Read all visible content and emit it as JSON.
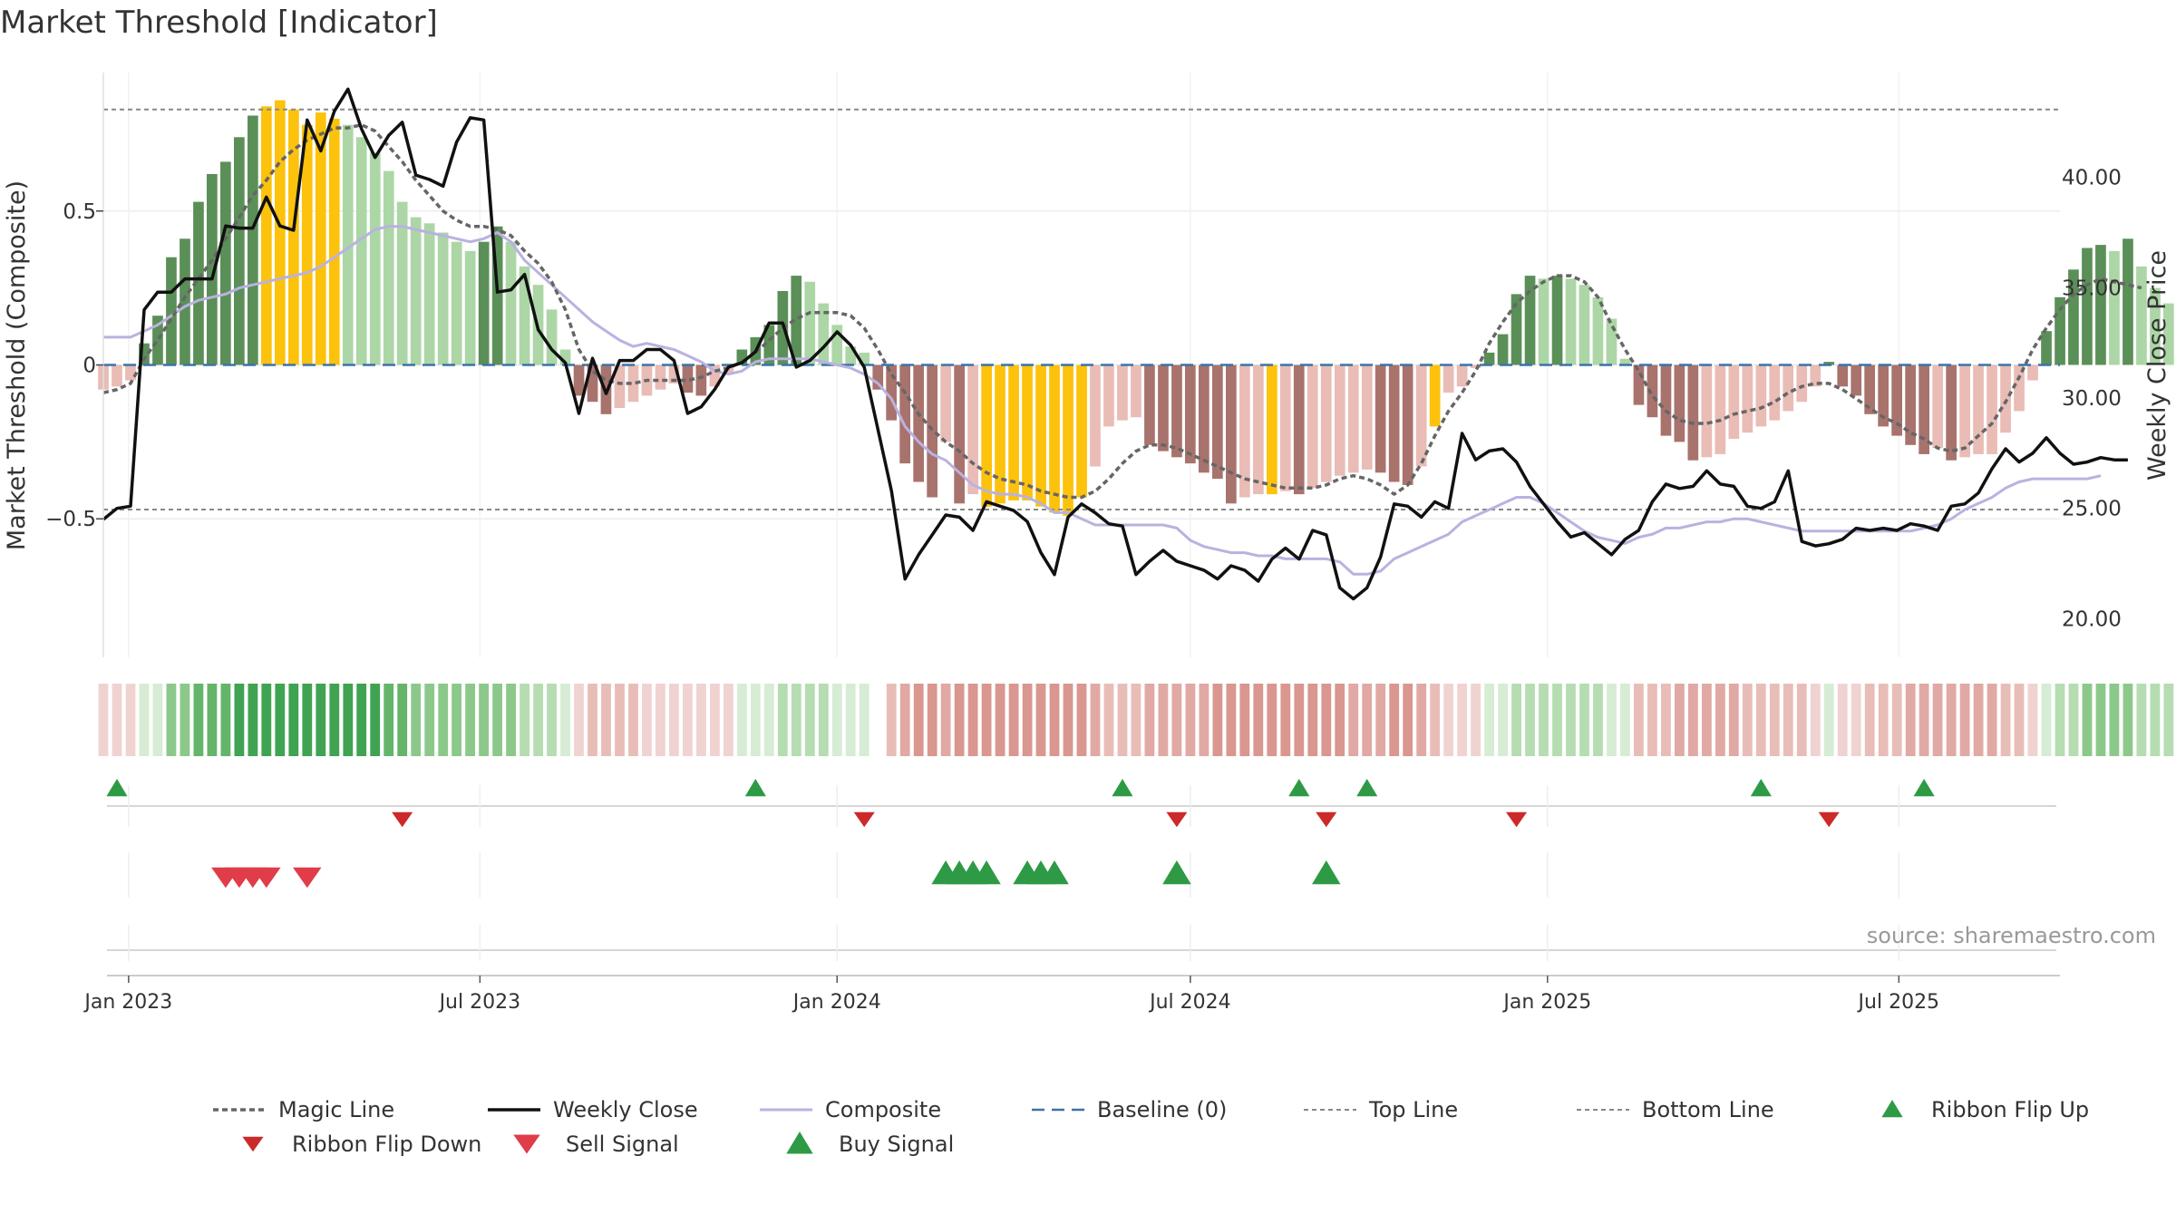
{
  "chart_data": {
    "type": "bar",
    "title": "Market Threshold [Indicator]",
    "ylabel_left": "Market Threshold (Composite)",
    "ylabel_right": "Weekly Close Price",
    "source": "source: sharemaestro.com",
    "ylim_left": [
      -0.95,
      0.95
    ],
    "yticks_left": [
      {
        "v": 0.5,
        "label": "0.5"
      },
      {
        "v": 0,
        "label": "0"
      },
      {
        "v": -0.5,
        "label": "−0.5"
      }
    ],
    "ylim_right": [
      18.25,
      44.75
    ],
    "yticks_right": [
      {
        "v": 40,
        "label": "40.00"
      },
      {
        "v": 35,
        "label": "35.00"
      },
      {
        "v": 30,
        "label": "30.00"
      },
      {
        "v": 25,
        "label": "25.00"
      },
      {
        "v": 20,
        "label": "20.00"
      }
    ],
    "x_axis_type": "weekly dates",
    "x_range": [
      "2022-12-19",
      "2025-09-22"
    ],
    "x_ticks": [
      {
        "date": "2023-01-01",
        "label": "Jan 2023"
      },
      {
        "date": "2023-07-01",
        "label": "Jul 2023"
      },
      {
        "date": "2024-01-01",
        "label": "Jan 2024"
      },
      {
        "date": "2024-07-01",
        "label": "Jul 2024"
      },
      {
        "date": "2025-01-01",
        "label": "Jan 2025"
      },
      {
        "date": "2025-07-01",
        "label": "Jul 2025"
      }
    ],
    "top_line": 0.83,
    "bottom_line": -0.47,
    "baseline": 0,
    "colors": {
      "dark_green": "#5b8f58",
      "light_green": "#acd6a6",
      "dark_red": "#a8736d",
      "light_red": "#e9bcb6",
      "gold": "#fcc20c",
      "magic": "#666666",
      "close": "#111111",
      "composite": "#b9b2e0",
      "baseline": "#3b73a8",
      "ref_line": "#888888",
      "flip_up": "#2e9a45",
      "flip_down": "#cc2a2a",
      "sell": "#e03c4a",
      "buy": "#2e9a45"
    },
    "ribbon_palette": {
      "up": [
        "#d6ecd4",
        "#b6dcb2",
        "#8dc88b",
        "#64b56a",
        "#3fa352"
      ],
      "down": [
        "#f0d3d0",
        "#e9bdb7",
        "#e1a9a4",
        "#d99790"
      ]
    },
    "series": [
      {
        "name": "Histogram",
        "start": "2022-12-19",
        "freq": "weekly",
        "values": [
          -0.08,
          -0.07,
          -0.05,
          0.07,
          0.16,
          0.35,
          0.41,
          0.53,
          0.62,
          0.66,
          0.74,
          0.81,
          0.84,
          0.86,
          0.83,
          0.78,
          0.82,
          0.8,
          0.78,
          0.74,
          0.69,
          0.63,
          0.53,
          0.48,
          0.46,
          0.43,
          0.4,
          0.37,
          0.4,
          0.45,
          0.4,
          0.32,
          0.26,
          0.18,
          0.05,
          -0.1,
          -0.12,
          -0.16,
          -0.14,
          -0.12,
          -0.1,
          -0.08,
          -0.06,
          -0.09,
          -0.1,
          -0.07,
          -0.03,
          0.05,
          0.09,
          0.13,
          0.24,
          0.29,
          0.27,
          0.2,
          0.13,
          0.06,
          0.04,
          -0.08,
          -0.18,
          -0.32,
          -0.38,
          -0.43,
          -0.25,
          -0.45,
          -0.42,
          -0.46,
          -0.45,
          -0.44,
          -0.44,
          -0.46,
          -0.48,
          -0.49,
          -0.43,
          -0.33,
          -0.2,
          -0.18,
          -0.17,
          -0.26,
          -0.28,
          -0.3,
          -0.32,
          -0.35,
          -0.37,
          -0.45,
          -0.43,
          -0.42,
          -0.42,
          -0.41,
          -0.42,
          -0.4,
          -0.38,
          -0.36,
          -0.35,
          -0.34,
          -0.35,
          -0.38,
          -0.39,
          -0.33,
          -0.2,
          -0.09,
          -0.07,
          -0.01,
          0.04,
          0.1,
          0.23,
          0.29,
          0.28,
          0.29,
          0.28,
          0.26,
          0.22,
          0.15,
          0.02,
          -0.13,
          -0.17,
          -0.23,
          -0.25,
          -0.31,
          -0.3,
          -0.29,
          -0.24,
          -0.22,
          -0.2,
          -0.18,
          -0.15,
          -0.12,
          -0.07,
          0.01,
          -0.07,
          -0.1,
          -0.16,
          -0.2,
          -0.23,
          -0.26,
          -0.29,
          -0.27,
          -0.31,
          -0.3,
          -0.29,
          -0.29,
          -0.22,
          -0.15,
          -0.05,
          0.11,
          0.22,
          0.31,
          0.38,
          0.39,
          0.37,
          0.41,
          0.32,
          0.25,
          0.2
        ]
      },
      {
        "name": "Magic Line",
        "values": [
          -0.09,
          -0.08,
          -0.06,
          0.02,
          0.08,
          0.15,
          0.22,
          0.28,
          0.34,
          0.41,
          0.48,
          0.55,
          0.6,
          0.66,
          0.7,
          0.73,
          0.75,
          0.77,
          0.77,
          0.78,
          0.76,
          0.71,
          0.66,
          0.6,
          0.55,
          0.5,
          0.47,
          0.45,
          0.45,
          0.44,
          0.42,
          0.37,
          0.33,
          0.27,
          0.18,
          0.05,
          -0.02,
          -0.05,
          -0.06,
          -0.06,
          -0.05,
          -0.05,
          -0.05,
          -0.05,
          -0.04,
          -0.02,
          -0.01,
          0.01,
          0.04,
          0.08,
          0.12,
          0.15,
          0.17,
          0.17,
          0.17,
          0.16,
          0.12,
          0.05,
          -0.03,
          -0.09,
          -0.16,
          -0.21,
          -0.25,
          -0.28,
          -0.32,
          -0.35,
          -0.37,
          -0.38,
          -0.39,
          -0.41,
          -0.42,
          -0.43,
          -0.43,
          -0.41,
          -0.37,
          -0.32,
          -0.28,
          -0.26,
          -0.26,
          -0.27,
          -0.29,
          -0.31,
          -0.33,
          -0.35,
          -0.37,
          -0.38,
          -0.39,
          -0.4,
          -0.4,
          -0.4,
          -0.39,
          -0.37,
          -0.36,
          -0.37,
          -0.39,
          -0.42,
          -0.39,
          -0.32,
          -0.23,
          -0.15,
          -0.09,
          -0.02,
          0.07,
          0.14,
          0.2,
          0.24,
          0.27,
          0.29,
          0.29,
          0.27,
          0.22,
          0.13,
          0.05,
          -0.02,
          -0.1,
          -0.15,
          -0.18,
          -0.19,
          -0.19,
          -0.18,
          -0.16,
          -0.15,
          -0.14,
          -0.12,
          -0.09,
          -0.07,
          -0.06,
          -0.06,
          -0.08,
          -0.11,
          -0.14,
          -0.17,
          -0.19,
          -0.22,
          -0.24,
          -0.27,
          -0.28,
          -0.27,
          -0.23,
          -0.19,
          -0.12,
          -0.04,
          0.05,
          0.12,
          0.18,
          0.23,
          0.26,
          0.28,
          0.27,
          0.26,
          0.25
        ]
      },
      {
        "name": "Weekly Close",
        "values": [
          24.5,
          25.0,
          25.1,
          34.0,
          34.8,
          34.8,
          35.4,
          35.4,
          35.4,
          37.8,
          37.7,
          37.7,
          39.1,
          37.8,
          37.6,
          42.6,
          41.2,
          43.0,
          44.0,
          42.2,
          40.9,
          41.9,
          42.5,
          40.1,
          39.9,
          39.6,
          41.6,
          42.7,
          42.6,
          34.8,
          34.9,
          35.6,
          33.1,
          32.2,
          31.6,
          29.3,
          31.8,
          30.2,
          31.7,
          31.7,
          32.2,
          32.2,
          31.7,
          29.3,
          29.6,
          30.4,
          31.4,
          31.6,
          32.1,
          33.4,
          33.4,
          31.4,
          31.7,
          32.3,
          33.0,
          32.4,
          31.4,
          28.6,
          25.8,
          21.8,
          22.9,
          23.8,
          24.7,
          24.6,
          24.0,
          25.3,
          25.1,
          24.9,
          24.4,
          23.0,
          22.0,
          24.6,
          25.2,
          24.8,
          24.3,
          24.2,
          22.0,
          22.6,
          23.1,
          22.6,
          22.4,
          22.2,
          21.8,
          22.4,
          22.2,
          21.7,
          22.7,
          23.2,
          22.7,
          24.0,
          23.8,
          21.4,
          20.9,
          21.4,
          22.8,
          25.2,
          25.1,
          24.6,
          25.3,
          25.0,
          28.4,
          27.2,
          27.6,
          27.7,
          27.1,
          26.0,
          25.2,
          24.4,
          23.7,
          23.9,
          23.4,
          22.9,
          23.6,
          24.0,
          25.3,
          26.1,
          25.9,
          26.0,
          26.7,
          26.1,
          26.0,
          25.1,
          25.0,
          25.3,
          26.7,
          23.5,
          23.3,
          23.4,
          23.6,
          24.1,
          24.0,
          24.1,
          24.0,
          24.3,
          24.2,
          24.0,
          25.1,
          25.2,
          25.7,
          26.8,
          27.7,
          27.1,
          27.5,
          28.2,
          27.5,
          27.0,
          27.1,
          27.3,
          27.2,
          27.2
        ]
      },
      {
        "name": "Composite",
        "values": [
          0.09,
          0.09,
          0.09,
          0.11,
          0.13,
          0.16,
          0.19,
          0.21,
          0.22,
          0.23,
          0.25,
          0.26,
          0.27,
          0.28,
          0.29,
          0.3,
          0.32,
          0.35,
          0.38,
          0.41,
          0.44,
          0.45,
          0.45,
          0.44,
          0.43,
          0.42,
          0.41,
          0.4,
          0.41,
          0.43,
          0.4,
          0.34,
          0.3,
          0.26,
          0.22,
          0.18,
          0.14,
          0.11,
          0.08,
          0.06,
          0.07,
          0.06,
          0.05,
          0.03,
          0.01,
          -0.02,
          -0.03,
          -0.02,
          0.01,
          0.02,
          0.02,
          0.02,
          0.02,
          0.01,
          0.0,
          -0.01,
          -0.03,
          -0.06,
          -0.11,
          -0.2,
          -0.25,
          -0.29,
          -0.31,
          -0.35,
          -0.39,
          -0.41,
          -0.42,
          -0.42,
          -0.43,
          -0.45,
          -0.48,
          -0.48,
          -0.5,
          -0.52,
          -0.52,
          -0.52,
          -0.52,
          -0.52,
          -0.52,
          -0.53,
          -0.57,
          -0.59,
          -0.6,
          -0.61,
          -0.61,
          -0.62,
          -0.62,
          -0.63,
          -0.63,
          -0.63,
          -0.63,
          -0.64,
          -0.68,
          -0.68,
          -0.67,
          -0.63,
          -0.61,
          -0.59,
          -0.57,
          -0.55,
          -0.51,
          -0.49,
          -0.47,
          -0.45,
          -0.43,
          -0.43,
          -0.45,
          -0.48,
          -0.51,
          -0.54,
          -0.56,
          -0.57,
          -0.58,
          -0.56,
          -0.55,
          -0.53,
          -0.53,
          -0.52,
          -0.51,
          -0.51,
          -0.5,
          -0.5,
          -0.51,
          -0.52,
          -0.53,
          -0.54,
          -0.54,
          -0.54,
          -0.54,
          -0.54,
          -0.54,
          -0.54,
          -0.54,
          -0.54,
          -0.53,
          -0.52,
          -0.5,
          -0.47,
          -0.45,
          -0.43,
          -0.4,
          -0.38,
          -0.37,
          -0.37,
          -0.37,
          -0.37,
          -0.37,
          -0.36
        ]
      }
    ],
    "ribbon": {
      "gaps": [
        "2024-01-22"
      ],
      "note_up_levels": "positive tint 0-4, negative tint 0-3"
    },
    "signals": {
      "ribbon_flip_up": [
        "2022-12-26",
        "2023-11-20",
        "2024-05-27",
        "2024-08-26",
        "2024-09-30",
        "2025-04-21",
        "2025-07-14"
      ],
      "ribbon_flip_down": [
        "2023-05-22",
        "2024-01-15",
        "2024-06-24",
        "2024-09-09",
        "2024-12-16",
        "2025-05-26"
      ],
      "sell_signal": [
        "2023-02-20",
        "2023-02-27",
        "2023-03-06",
        "2023-03-13",
        "2023-04-03"
      ],
      "buy_signal": [
        "2024-02-26",
        "2024-03-04",
        "2024-03-11",
        "2024-03-18",
        "2024-04-08",
        "2024-04-15",
        "2024-04-22",
        "2024-06-24",
        "2024-09-09"
      ]
    },
    "legend": {
      "placement": "bottom",
      "items": [
        {
          "key": "magic",
          "label": "Magic Line"
        },
        {
          "key": "close",
          "label": "Weekly Close"
        },
        {
          "key": "composite",
          "label": "Composite"
        },
        {
          "key": "baseline",
          "label": "Baseline (0)"
        },
        {
          "key": "top",
          "label": "Top Line"
        },
        {
          "key": "bottom",
          "label": "Bottom Line"
        },
        {
          "key": "flip_up",
          "label": "Ribbon Flip Up"
        },
        {
          "key": "flip_down",
          "label": "Ribbon Flip Down"
        },
        {
          "key": "sell",
          "label": "Sell Signal"
        },
        {
          "key": "buy",
          "label": "Buy Signal"
        }
      ]
    },
    "grid": true
  }
}
